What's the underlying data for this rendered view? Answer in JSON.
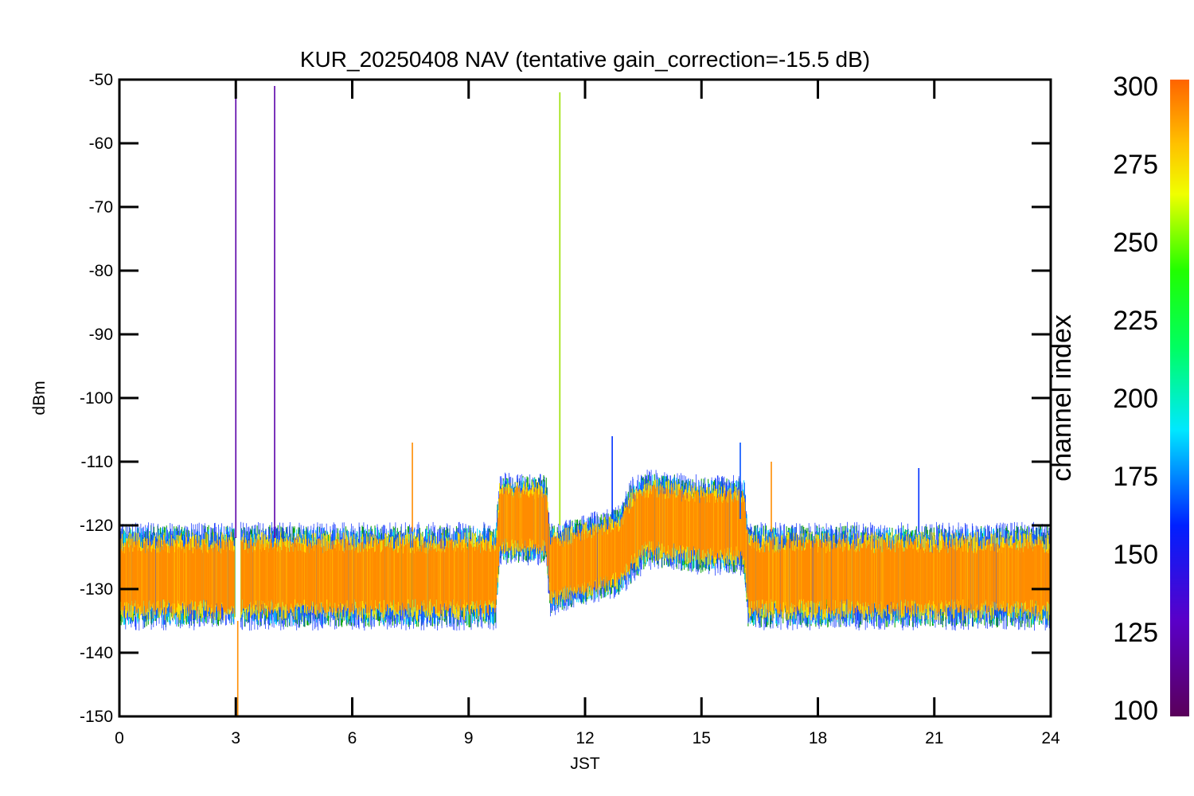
{
  "chart_data": {
    "type": "line",
    "title": "KUR_20250408 NAV (tentative gain_correction=-15.5 dB)",
    "xlabel": "JST",
    "ylabel": "dBm",
    "xlim": [
      0,
      24
    ],
    "ylim": [
      -150,
      -50
    ],
    "xticks": [
      "0",
      "3",
      "6",
      "9",
      "12",
      "15",
      "18",
      "21",
      "24"
    ],
    "yticks": [
      "-50",
      "-60",
      "-70",
      "-80",
      "-90",
      "-100",
      "-110",
      "-120",
      "-130",
      "-140",
      "-150"
    ],
    "grid": false,
    "colorbar": {
      "label": "channel index",
      "range": [
        98,
        302
      ],
      "ticks": [
        "300",
        "275",
        "250",
        "225",
        "200",
        "175",
        "150",
        "125",
        "100"
      ],
      "colormap": "rainbow (purple-blue-cyan-green-yellow-orange)"
    },
    "series": [
      {
        "channel": 300,
        "color": "#ff8c00",
        "x": [
          0,
          3,
          6,
          9,
          9.7,
          9.8,
          11.0,
          11.1,
          12.9,
          13.2,
          13.6,
          15.0,
          16.1,
          16.2,
          18,
          21,
          24
        ],
        "y_mid": [
          -128,
          -128,
          -128,
          -128,
          -128,
          -119,
          -119,
          -127,
          -124,
          -121,
          -119,
          -120,
          -120,
          -128,
          -128,
          -128,
          -128
        ],
        "y_lo": [
          -135,
          -135,
          -135,
          -135,
          -135,
          -125,
          -125,
          -133,
          -130,
          -127,
          -125,
          -126,
          -126,
          -135,
          -135,
          -135,
          -135
        ],
        "y_hi": [
          -121,
          -121,
          -121,
          -121,
          -121,
          -113,
          -113,
          -121,
          -118,
          -113,
          -112,
          -113,
          -113,
          -121,
          -121,
          -121,
          -121
        ]
      }
    ],
    "spikes": [
      {
        "x": 3.0,
        "y_top": -51,
        "y_bottom": -122,
        "color": "#5a00a8"
      },
      {
        "x": 3.05,
        "y_top": -135,
        "y_bottom": -150,
        "color": "#ff8c00"
      },
      {
        "x": 4.0,
        "y_top": -51,
        "y_bottom": -122,
        "color": "#5a00a8"
      },
      {
        "x": 11.35,
        "y_top": -52,
        "y_bottom": -120,
        "color": "#9ae000"
      },
      {
        "x": 7.55,
        "y_top": -107,
        "y_bottom": -121,
        "color": "#ff8c00"
      },
      {
        "x": 12.7,
        "y_top": -106,
        "y_bottom": -119,
        "color": "#0030ff"
      },
      {
        "x": 16.0,
        "y_top": -107,
        "y_bottom": -119,
        "color": "#0050ff"
      },
      {
        "x": 16.8,
        "y_top": -110,
        "y_bottom": -121,
        "color": "#ff8c00"
      },
      {
        "x": 20.6,
        "y_top": -111,
        "y_bottom": -121,
        "color": "#0030ff"
      }
    ]
  }
}
